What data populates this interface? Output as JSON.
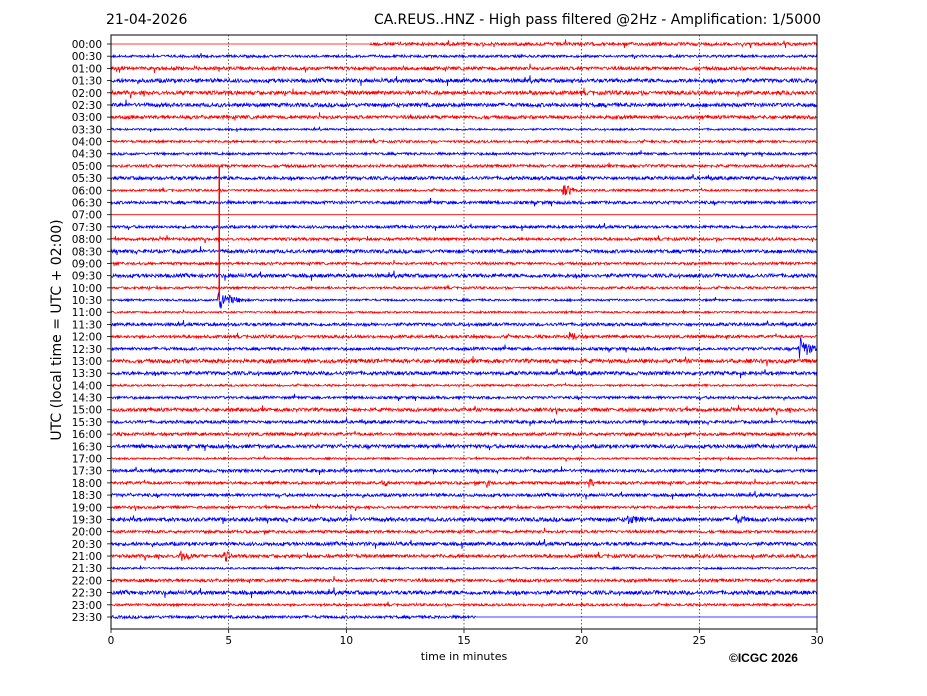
{
  "header": {
    "date": "21-04-2026",
    "title": "CA.REUS..HNZ - High pass filtered @2Hz - Amplification: 1/5000"
  },
  "footer": {
    "copyright": "©ICGC 2026"
  },
  "chart_data": {
    "type": "line",
    "title": "CA.REUS..HNZ - High pass filtered @2Hz - Amplification: 1/5000",
    "xlabel": "time in minutes",
    "ylabel": "UTC (local time = UTC + 02:00)",
    "xlim": [
      0,
      30
    ],
    "x_ticks": [
      "0",
      "5",
      "10",
      "15",
      "20",
      "25",
      "30"
    ],
    "x_grid": true,
    "y_ticks": [
      "00:00",
      "00:30",
      "01:00",
      "01:30",
      "02:00",
      "02:30",
      "03:00",
      "03:30",
      "04:00",
      "04:30",
      "05:00",
      "05:30",
      "06:00",
      "06:30",
      "07:00",
      "07:30",
      "08:00",
      "08:30",
      "09:00",
      "09:30",
      "10:00",
      "10:30",
      "11:00",
      "11:30",
      "12:00",
      "12:30",
      "13:00",
      "13:30",
      "14:00",
      "14:30",
      "15:00",
      "15:30",
      "16:00",
      "16:30",
      "17:00",
      "17:30",
      "18:00",
      "18:30",
      "19:00",
      "19:30",
      "20:00",
      "20:30",
      "21:00",
      "21:30",
      "22:00",
      "22:30",
      "23:00",
      "23:30"
    ],
    "trace_colors": [
      "#ff0000",
      "#0000ff"
    ],
    "data_gaps": [
      {
        "row": "00:00",
        "from_min": 0,
        "to_min": 11
      },
      {
        "row": "07:00",
        "from_min": 0,
        "to_min": 30
      },
      {
        "row": "23:30",
        "from_min": 15.5,
        "to_min": 30
      }
    ],
    "events": [
      {
        "row": "10:30",
        "minute": 4.6,
        "amplitude": 10,
        "duration_min": 1.2
      },
      {
        "row": "12:30",
        "minute": 29.3,
        "amplitude": 12,
        "duration_min": 0.9
      },
      {
        "row": "05:00",
        "minute": 4.6,
        "amplitude": 0,
        "spike_until_row": "10:30"
      },
      {
        "row": "18:00",
        "minute": 11.6,
        "amplitude": 5,
        "duration_min": 0.5
      },
      {
        "row": "18:00",
        "minute": 16,
        "amplitude": 5,
        "duration_min": 0.4
      },
      {
        "row": "18:00",
        "minute": 20.4,
        "amplitude": 5,
        "duration_min": 0.4
      },
      {
        "row": "19:30",
        "minute": 22,
        "amplitude": 5,
        "duration_min": 1.5
      },
      {
        "row": "19:30",
        "minute": 26.6,
        "amplitude": 5,
        "duration_min": 1.2
      },
      {
        "row": "21:00",
        "minute": 3,
        "amplitude": 6,
        "duration_min": 1
      },
      {
        "row": "21:00",
        "minute": 4.9,
        "amplitude": 6,
        "duration_min": 0.5
      },
      {
        "row": "12:00",
        "minute": 19.5,
        "amplitude": 5,
        "duration_min": 1
      },
      {
        "row": "06:00",
        "minute": 19.3,
        "amplitude": 6,
        "duration_min": 1
      }
    ]
  }
}
